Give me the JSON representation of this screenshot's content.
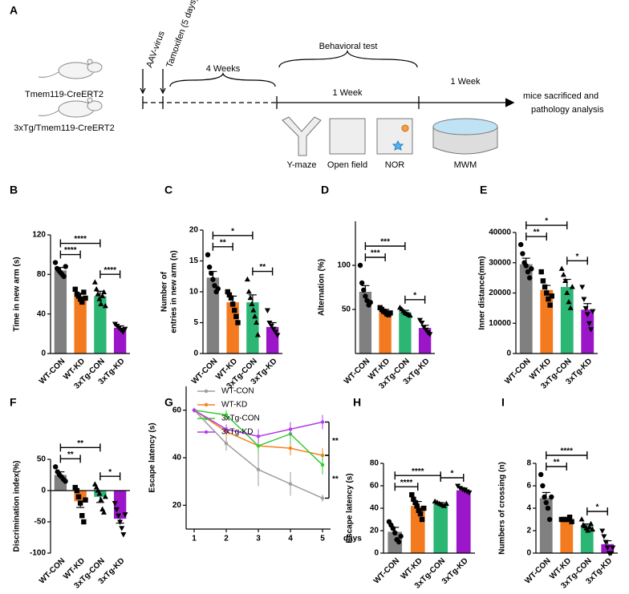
{
  "diagram": {
    "panel": "A",
    "groups": [
      "Tmem119-CreERT2",
      "3xTg/Tmem119-CreERT2"
    ],
    "events": [
      "AAV-virus",
      "Tamoxifen (5 days)"
    ],
    "phases": [
      "4 Weeks",
      "Behavioral test",
      "1 Week",
      "1 Week"
    ],
    "endpoint": [
      "mice sacrificed and",
      "pathology analysis"
    ],
    "tests": [
      "Y-maze",
      "Open field",
      "NOR",
      "MWM"
    ]
  },
  "chart_data": [
    {
      "type": "bar",
      "panel": "B",
      "ylabel": "Time in new arm (s)",
      "categories": [
        "WT-CON",
        "WT-KD",
        "3xTg-CON",
        "3xTg-KD"
      ],
      "colors": [
        "#808080",
        "#f47a1f",
        "#2bb673",
        "#9b16c9"
      ],
      "markers": [
        "circle",
        "square",
        "triangle",
        "triangle-down"
      ],
      "values": [
        84,
        58,
        58,
        26
      ],
      "errors": [
        3,
        3,
        5,
        2
      ],
      "points": [
        [
          92,
          86,
          84,
          82,
          80,
          78,
          88
        ],
        [
          65,
          60,
          58,
          55,
          52,
          62,
          56
        ],
        [
          72,
          65,
          60,
          55,
          50,
          58,
          62,
          48
        ],
        [
          30,
          28,
          26,
          24,
          22,
          25
        ]
      ],
      "ylim": [
        0,
        120
      ],
      "yticks": [
        0,
        40,
        80,
        120
      ],
      "annotations": [
        {
          "label": "****",
          "between": [
            "WT-CON",
            "WT-KD"
          ]
        },
        {
          "label": "****",
          "between": [
            "WT-CON",
            "3xTg-CON"
          ]
        },
        {
          "label": "****",
          "between": [
            "3xTg-CON",
            "3xTg-KD"
          ]
        }
      ]
    },
    {
      "type": "bar",
      "panel": "C",
      "ylabel": [
        "Number of",
        "entries in new arm (n)"
      ],
      "categories": [
        "WT-CON",
        "WT-KD",
        "3xTg-CON",
        "3xTg-KD"
      ],
      "colors": [
        "#808080",
        "#f47a1f",
        "#2bb673",
        "#9b16c9"
      ],
      "markers": [
        "circle",
        "square",
        "triangle",
        "triangle-down"
      ],
      "values": [
        12.3,
        8.3,
        8.3,
        4.3
      ],
      "errors": [
        1,
        1,
        1.2,
        0.7
      ],
      "points": [
        [
          16,
          14,
          13,
          12,
          11,
          10,
          10.5
        ],
        [
          10,
          9.5,
          9,
          8,
          7,
          6,
          5
        ],
        [
          12,
          10,
          9,
          8,
          7,
          6,
          5,
          3
        ],
        [
          7,
          5,
          4.5,
          4,
          3.5,
          3
        ]
      ],
      "ylim": [
        0,
        20
      ],
      "yticks": [
        0,
        5,
        10,
        15,
        20
      ],
      "annotations": [
        {
          "label": "**",
          "between": [
            "WT-CON",
            "WT-KD"
          ]
        },
        {
          "label": "*",
          "between": [
            "WT-CON",
            "3xTg-CON"
          ]
        },
        {
          "label": "**",
          "between": [
            "3xTg-CON",
            "3xTg-KD"
          ]
        }
      ]
    },
    {
      "type": "bar",
      "panel": "D",
      "ylabel": "Alternation (%)",
      "categories": [
        "WT-CON",
        "WT-KD",
        "3xTg-CON",
        "3xTg-KD"
      ],
      "colors": [
        "#808080",
        "#f47a1f",
        "#2bb673",
        "#9b16c9"
      ],
      "markers": [
        "circle",
        "square",
        "triangle",
        "triangle-down"
      ],
      "values": [
        70,
        48,
        47,
        29
      ],
      "errors": [
        7,
        2,
        2,
        3
      ],
      "points": [
        [
          100,
          80,
          72,
          65,
          60,
          55,
          58
        ],
        [
          52,
          50,
          48,
          47,
          45,
          44,
          46
        ],
        [
          52,
          50,
          48,
          46,
          45,
          44,
          43
        ],
        [
          38,
          35,
          30,
          27,
          24,
          22
        ]
      ],
      "ylim": [
        0,
        150
      ],
      "yticks": [
        50,
        100
      ],
      "annotations": [
        {
          "label": "***",
          "between": [
            "WT-CON",
            "WT-KD"
          ]
        },
        {
          "label": "***",
          "between": [
            "WT-CON",
            "3xTg-CON"
          ]
        },
        {
          "label": "*",
          "between": [
            "3xTg-CON",
            "3xTg-KD"
          ]
        }
      ]
    },
    {
      "type": "bar",
      "panel": "E",
      "ylabel": "Inner distance(mm)",
      "categories": [
        "WT-CON",
        "WT-KD",
        "3xTg-CON",
        "3xTg-KD"
      ],
      "colors": [
        "#808080",
        "#f47a1f",
        "#2bb673",
        "#9b16c9"
      ],
      "markers": [
        "circle",
        "square",
        "triangle",
        "triangle-down"
      ],
      "values": [
        29500,
        21000,
        22000,
        14500
      ],
      "errors": [
        2000,
        1500,
        2500,
        2000
      ],
      "points": [
        [
          36000,
          33000,
          30000,
          29000,
          27000,
          25000,
          28000
        ],
        [
          27000,
          24000,
          22000,
          20000,
          18000,
          16000,
          19000
        ],
        [
          28000,
          26000,
          24000,
          20000,
          17000,
          15000,
          22000
        ],
        [
          22000,
          18000,
          15000,
          13000,
          10000,
          8000,
          14000
        ]
      ],
      "ylim": [
        0,
        40000
      ],
      "yticks": [
        0,
        10000,
        20000,
        30000,
        40000
      ],
      "annotations": [
        {
          "label": "**",
          "between": [
            "WT-CON",
            "WT-KD"
          ]
        },
        {
          "label": "*",
          "between": [
            "WT-CON",
            "3xTg-CON"
          ]
        },
        {
          "label": "*",
          "between": [
            "3xTg-CON",
            "3xTg-KD"
          ]
        }
      ]
    },
    {
      "type": "bar",
      "panel": "F",
      "ylabel": "Discrimination index(%)",
      "categories": [
        "WT-CON",
        "WT-KD",
        "3xTg-CON",
        "3xTg-KD"
      ],
      "colors": [
        "#808080",
        "#f47a1f",
        "#2bb673",
        "#9b16c9"
      ],
      "markers": [
        "circle",
        "square",
        "triangle",
        "triangle-down"
      ],
      "values": [
        25,
        -17,
        -10,
        -45
      ],
      "errors": [
        5,
        10,
        9,
        7
      ],
      "points": [
        [
          38,
          30,
          25,
          22,
          18,
          15
        ],
        [
          5,
          0,
          -10,
          -20,
          -40,
          -50,
          -15
        ],
        [
          10,
          5,
          0,
          -5,
          -15,
          -30,
          -35,
          -10
        ],
        [
          -20,
          -30,
          -40,
          -50,
          -60,
          -70,
          -38
        ]
      ],
      "ylim": [
        -100,
        50
      ],
      "yticks": [
        -100,
        -50,
        0,
        50
      ],
      "annotations": [
        {
          "label": "**",
          "between": [
            "WT-CON",
            "WT-KD"
          ]
        },
        {
          "label": "**",
          "between": [
            "WT-CON",
            "3xTg-CON"
          ]
        },
        {
          "label": "*",
          "between": [
            "3xTg-CON",
            "3xTg-KD"
          ]
        }
      ]
    },
    {
      "type": "line",
      "panel": "G",
      "ylabel": "Escape latency (s)",
      "xlabel": "days",
      "x": [
        1,
        2,
        3,
        4,
        5
      ],
      "xlim": [
        0.75,
        5.25
      ],
      "xticks": [
        1,
        2,
        3,
        4,
        5
      ],
      "ylim": [
        10,
        70
      ],
      "yticks": [
        20,
        40,
        60
      ],
      "legend": "upper left",
      "series": [
        {
          "name": "WT-CON",
          "color": "#9e9e9e",
          "values": [
            60,
            46,
            35,
            29,
            23
          ],
          "errors": [
            1,
            3,
            7,
            5,
            1.5
          ]
        },
        {
          "name": "WT-KD",
          "color": "#f58220",
          "values": [
            60,
            51,
            45,
            44,
            41
          ],
          "errors": [
            1,
            3,
            3,
            3,
            3
          ]
        },
        {
          "name": "3xTg-CON",
          "color": "#33cc33",
          "values": [
            60,
            58,
            45,
            50,
            37
          ],
          "errors": [
            1,
            2,
            3,
            4,
            4
          ]
        },
        {
          "name": "3xTg-KD",
          "color": "#b23fe8",
          "values": [
            60,
            52,
            49,
            52,
            55
          ],
          "errors": [
            1,
            2,
            3,
            3,
            3
          ]
        }
      ],
      "annotations": [
        {
          "label": "**",
          "between": [
            "3xTg-KD",
            "WT-KD"
          ]
        },
        {
          "label": "**",
          "between": [
            "WT-KD",
            "WT-CON"
          ]
        }
      ]
    },
    {
      "type": "bar",
      "panel": "H",
      "ylabel": "Escape latency (s)",
      "categories": [
        "WT-CON",
        "WT-KD",
        "3xTg-CON",
        "3xTg-KD"
      ],
      "colors": [
        "#808080",
        "#f47a1f",
        "#2bb673",
        "#9b16c9"
      ],
      "markers": [
        "circle",
        "square",
        "triangle",
        "triangle-down"
      ],
      "values": [
        19,
        42,
        44,
        56
      ],
      "errors": [
        4,
        4,
        1,
        2
      ],
      "points": [
        [
          28,
          25,
          22,
          18,
          12,
          10,
          15
        ],
        [
          52,
          48,
          45,
          42,
          38,
          35,
          30,
          40
        ],
        [
          46,
          45,
          44,
          43,
          42,
          44
        ],
        [
          60,
          58,
          57,
          56,
          55,
          54
        ]
      ],
      "ylim": [
        0,
        80
      ],
      "yticks": [
        0,
        20,
        40,
        60,
        80
      ],
      "annotations": [
        {
          "label": "****",
          "between": [
            "WT-CON",
            "WT-KD"
          ]
        },
        {
          "label": "****",
          "between": [
            "WT-CON",
            "3xTg-CON"
          ]
        },
        {
          "label": "*",
          "between": [
            "3xTg-CON",
            "3xTg-KD"
          ]
        }
      ]
    },
    {
      "type": "bar",
      "panel": "I",
      "ylabel": "Numbers of crossing (n)",
      "categories": [
        "WT-CON",
        "WT-KD",
        "3xTg-CON",
        "3xTg-KD"
      ],
      "colors": [
        "#808080",
        "#f47a1f",
        "#2bb673",
        "#9b16c9"
      ],
      "markers": [
        "circle",
        "square",
        "triangle",
        "triangle-down"
      ],
      "values": [
        4.9,
        3.0,
        2.4,
        0.8
      ],
      "errors": [
        0.5,
        0.1,
        0.2,
        0.3
      ],
      "points": [
        [
          7,
          6,
          5,
          4.5,
          4,
          3,
          5
        ],
        [
          3,
          3,
          3,
          3,
          3.2,
          2.8
        ],
        [
          3,
          2.5,
          2.4,
          2.2,
          2,
          2.3,
          2.6,
          2.1
        ],
        [
          2,
          1.5,
          1,
          0.5,
          0,
          0,
          0.5
        ]
      ],
      "ylim": [
        0,
        8
      ],
      "yticks": [
        0,
        2,
        4,
        6,
        8
      ],
      "annotations": [
        {
          "label": "**",
          "between": [
            "WT-CON",
            "WT-KD"
          ]
        },
        {
          "label": "****",
          "between": [
            "WT-CON",
            "3xTg-CON"
          ]
        },
        {
          "label": "*",
          "between": [
            "3xTg-CON",
            "3xTg-KD"
          ]
        }
      ]
    }
  ]
}
